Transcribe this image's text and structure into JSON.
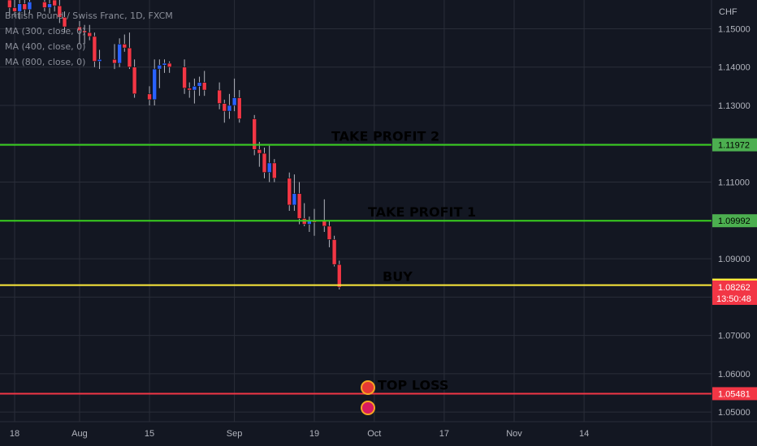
{
  "legend": {
    "symbol": "British Pound / Swiss Franc, 1D, FXCM",
    "indicators": [
      "MA (300, close, 0)",
      "MA (400, close, 0)",
      "MA (800, close, 0)"
    ]
  },
  "price_axis": {
    "currency": "CHF",
    "ticks": [
      {
        "value": 1.15,
        "label": "1.15000"
      },
      {
        "value": 1.14,
        "label": "1.14000"
      },
      {
        "value": 1.13,
        "label": "1.13000"
      },
      {
        "value": 1.12,
        "label": "1.12000"
      },
      {
        "value": 1.11,
        "label": "1.11000"
      },
      {
        "value": 1.1,
        "label": "1.10000"
      },
      {
        "value": 1.09,
        "label": "1.09000"
      },
      {
        "value": 1.08,
        "label": "1.08000"
      },
      {
        "value": 1.07,
        "label": "1.07000"
      },
      {
        "value": 1.06,
        "label": "1.06000"
      },
      {
        "value": 1.05,
        "label": "1.05000"
      }
    ],
    "badges": [
      {
        "label": "1.11972",
        "value": 1.11972,
        "bg": "#4caf50",
        "fg": "#000000"
      },
      {
        "label": "1.09992",
        "value": 1.09992,
        "bg": "#4caf50",
        "fg": "#000000"
      },
      {
        "label": "1.08313",
        "value": 1.08313,
        "bg": "#ffeb3b",
        "fg": "#000000"
      },
      {
        "label": "1.08262",
        "value": 1.08262,
        "bg": "#f23645",
        "fg": "#ffffff",
        "sub": "13:50:48"
      },
      {
        "label": "1.05481",
        "value": 1.05481,
        "bg": "#f23645",
        "fg": "#ffffff"
      }
    ]
  },
  "time_axis": {
    "ticks": [
      {
        "label": "18",
        "day": 0
      },
      {
        "label": "Aug",
        "day": 13
      },
      {
        "label": "15",
        "day": 27
      },
      {
        "label": "Sep",
        "day": 44
      },
      {
        "label": "19",
        "day": 60
      },
      {
        "label": "Oct",
        "day": 72
      },
      {
        "label": "17",
        "day": 86
      },
      {
        "label": "Nov",
        "day": 100
      },
      {
        "label": "14",
        "day": 114
      }
    ]
  },
  "colors": {
    "background": "#131722",
    "grid": "#2a2e39",
    "axis_text": "#b2b5be",
    "up": "#2962ff",
    "down": "#f23645",
    "wick": "#b2b5be"
  },
  "chart_data": {
    "type": "candlestick",
    "title": "British Pound / Swiss Franc, 1D, FXCM",
    "ylabel": "CHF",
    "ylim": [
      1.0475,
      1.1575
    ],
    "lines": [
      {
        "name": "TAKE PROFIT 2",
        "value": 1.11972,
        "color": "#39d01f"
      },
      {
        "name": "TAKE PROFIT 1",
        "value": 1.09992,
        "color": "#39d01f"
      },
      {
        "name": "BUY",
        "value": 1.08313,
        "color": "#ffeb3b"
      },
      {
        "name": "STOP LOSS",
        "value": 1.05481,
        "color": "#f23645"
      }
    ],
    "candles": [
      {
        "day": -1,
        "open": 1.1575,
        "high": 1.1575,
        "low": 1.1535,
        "close": 1.1555
      },
      {
        "day": 0,
        "open": 1.1555,
        "high": 1.1575,
        "low": 1.153,
        "close": 1.1545
      },
      {
        "day": 1,
        "open": 1.1545,
        "high": 1.1575,
        "low": 1.1525,
        "close": 1.1565
      },
      {
        "day": 2,
        "open": 1.1565,
        "high": 1.1575,
        "low": 1.1535,
        "close": 1.155
      },
      {
        "day": 3,
        "open": 1.155,
        "high": 1.1575,
        "low": 1.154,
        "close": 1.157
      },
      {
        "day": 6,
        "open": 1.157,
        "high": 1.1575,
        "low": 1.1545,
        "close": 1.1555
      },
      {
        "day": 7,
        "open": 1.1555,
        "high": 1.1575,
        "low": 1.154,
        "close": 1.1565
      },
      {
        "day": 8,
        "open": 1.1575,
        "high": 1.1575,
        "low": 1.1545,
        "close": 1.156
      },
      {
        "day": 9,
        "open": 1.156,
        "high": 1.1575,
        "low": 1.1515,
        "close": 1.153
      },
      {
        "day": 10,
        "open": 1.153,
        "high": 1.1545,
        "low": 1.149,
        "close": 1.1505
      },
      {
        "day": 13,
        "open": 1.1505,
        "high": 1.152,
        "low": 1.146,
        "close": 1.1495
      },
      {
        "day": 14,
        "open": 1.1495,
        "high": 1.151,
        "low": 1.146,
        "close": 1.149
      },
      {
        "day": 15,
        "open": 1.149,
        "high": 1.151,
        "low": 1.147,
        "close": 1.148
      },
      {
        "day": 16,
        "open": 1.148,
        "high": 1.149,
        "low": 1.14,
        "close": 1.1415
      },
      {
        "day": 17,
        "open": 1.1415,
        "high": 1.1445,
        "low": 1.1395,
        "close": 1.142
      },
      {
        "day": 20,
        "open": 1.142,
        "high": 1.146,
        "low": 1.1395,
        "close": 1.141
      },
      {
        "day": 21,
        "open": 1.141,
        "high": 1.1475,
        "low": 1.14,
        "close": 1.146
      },
      {
        "day": 22,
        "open": 1.146,
        "high": 1.1485,
        "low": 1.144,
        "close": 1.145
      },
      {
        "day": 23,
        "open": 1.145,
        "high": 1.149,
        "low": 1.1395,
        "close": 1.14
      },
      {
        "day": 24,
        "open": 1.14,
        "high": 1.142,
        "low": 1.132,
        "close": 1.133
      },
      {
        "day": 27,
        "open": 1.133,
        "high": 1.135,
        "low": 1.13,
        "close": 1.1315
      },
      {
        "day": 28,
        "open": 1.1315,
        "high": 1.142,
        "low": 1.13,
        "close": 1.1395
      },
      {
        "day": 29,
        "open": 1.1395,
        "high": 1.142,
        "low": 1.1345,
        "close": 1.1405
      },
      {
        "day": 30,
        "open": 1.1405,
        "high": 1.142,
        "low": 1.1385,
        "close": 1.141
      },
      {
        "day": 31,
        "open": 1.141,
        "high": 1.1415,
        "low": 1.1385,
        "close": 1.14
      },
      {
        "day": 34,
        "open": 1.14,
        "high": 1.142,
        "low": 1.133,
        "close": 1.1345
      },
      {
        "day": 35,
        "open": 1.1345,
        "high": 1.136,
        "low": 1.132,
        "close": 1.134
      },
      {
        "day": 36,
        "open": 1.134,
        "high": 1.137,
        "low": 1.1305,
        "close": 1.135
      },
      {
        "day": 37,
        "open": 1.135,
        "high": 1.1375,
        "low": 1.1325,
        "close": 1.136
      },
      {
        "day": 38,
        "open": 1.136,
        "high": 1.139,
        "low": 1.1325,
        "close": 1.134
      },
      {
        "day": 41,
        "open": 1.134,
        "high": 1.136,
        "low": 1.129,
        "close": 1.1305
      },
      {
        "day": 42,
        "open": 1.1305,
        "high": 1.1315,
        "low": 1.1255,
        "close": 1.1285
      },
      {
        "day": 43,
        "open": 1.1285,
        "high": 1.133,
        "low": 1.1265,
        "close": 1.13
      },
      {
        "day": 44,
        "open": 1.13,
        "high": 1.137,
        "low": 1.1285,
        "close": 1.132
      },
      {
        "day": 45,
        "open": 1.132,
        "high": 1.134,
        "low": 1.1255,
        "close": 1.1265
      },
      {
        "day": 48,
        "open": 1.1265,
        "high": 1.1275,
        "low": 1.117,
        "close": 1.1185
      },
      {
        "day": 49,
        "open": 1.1185,
        "high": 1.1205,
        "low": 1.114,
        "close": 1.1175
      },
      {
        "day": 50,
        "open": 1.1175,
        "high": 1.119,
        "low": 1.111,
        "close": 1.1125
      },
      {
        "day": 51,
        "open": 1.1125,
        "high": 1.1195,
        "low": 1.11,
        "close": 1.115
      },
      {
        "day": 52,
        "open": 1.115,
        "high": 1.116,
        "low": 1.11,
        "close": 1.111
      },
      {
        "day": 55,
        "open": 1.111,
        "high": 1.1125,
        "low": 1.1025,
        "close": 1.104
      },
      {
        "day": 56,
        "open": 1.104,
        "high": 1.112,
        "low": 1.1025,
        "close": 1.107
      },
      {
        "day": 57,
        "open": 1.107,
        "high": 1.11,
        "low": 1.099,
        "close": 1.1005
      },
      {
        "day": 58,
        "open": 1.1005,
        "high": 1.1045,
        "low": 1.0985,
        "close": 1.099
      },
      {
        "day": 59,
        "open": 1.099,
        "high": 1.101,
        "low": 1.097,
        "close": 1.1
      },
      {
        "day": 60,
        "open": 1.1,
        "high": 1.103,
        "low": 1.096,
        "close": 1.0995
      },
      {
        "day": 62,
        "open": 1.1,
        "high": 1.1055,
        "low": 1.097,
        "close": 1.0985
      },
      {
        "day": 63,
        "open": 1.0985,
        "high": 1.1,
        "low": 1.093,
        "close": 1.095
      },
      {
        "day": 64,
        "open": 1.095,
        "high": 1.096,
        "low": 1.088,
        "close": 1.0885
      },
      {
        "day": 65,
        "open": 1.0885,
        "high": 1.0895,
        "low": 1.082,
        "close": 1.0826
      }
    ],
    "annotations": [
      {
        "text": "TAKE PROFIT 2",
        "value": 1.11972
      },
      {
        "text": "TAKE PROFIT 1",
        "value": 1.09992
      },
      {
        "text": "BUY",
        "value": 1.08313
      },
      {
        "text": "TOP LOSS",
        "value": 1.05481
      }
    ],
    "grid": true
  }
}
